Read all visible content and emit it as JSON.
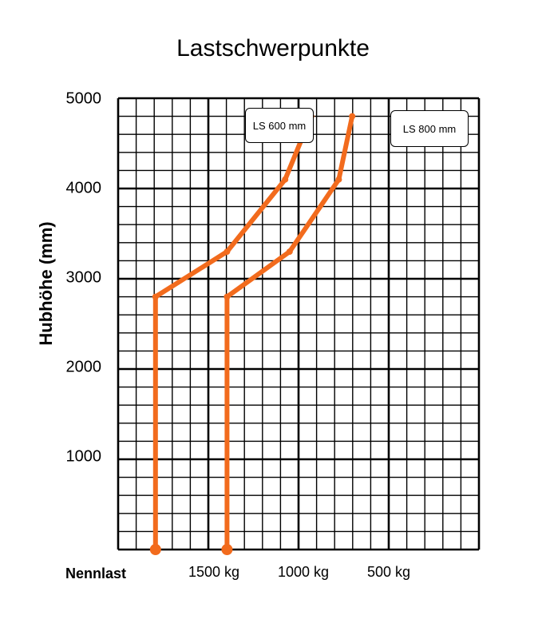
{
  "chart_data": {
    "type": "line",
    "title": "Lastschwerpunkte",
    "ylabel": "Hubhöhe (mm)",
    "xlabel": "Nennlast",
    "y_ticks": [
      "5000",
      "4000",
      "3000",
      "2000",
      "1000"
    ],
    "x_ticks": [
      "1500 kg",
      "1000 kg",
      "500 kg"
    ],
    "ylim": [
      0,
      5000
    ],
    "grid": true,
    "line_color": "#f26b1d",
    "series": [
      {
        "name": "LS 600 mm",
        "points": [
          {
            "load": 1800,
            "lift": 0
          },
          {
            "load": 1800,
            "lift": 2800
          },
          {
            "load": 1400,
            "lift": 3300
          },
          {
            "load": 1075,
            "lift": 4100
          },
          {
            "load": 930,
            "lift": 4800
          }
        ]
      },
      {
        "name": "LS 800 mm",
        "points": [
          {
            "load": 1400,
            "lift": 0
          },
          {
            "load": 1400,
            "lift": 2800
          },
          {
            "load": 1050,
            "lift": 3300
          },
          {
            "load": 775,
            "lift": 4100
          },
          {
            "load": 700,
            "lift": 4800
          }
        ]
      }
    ]
  }
}
